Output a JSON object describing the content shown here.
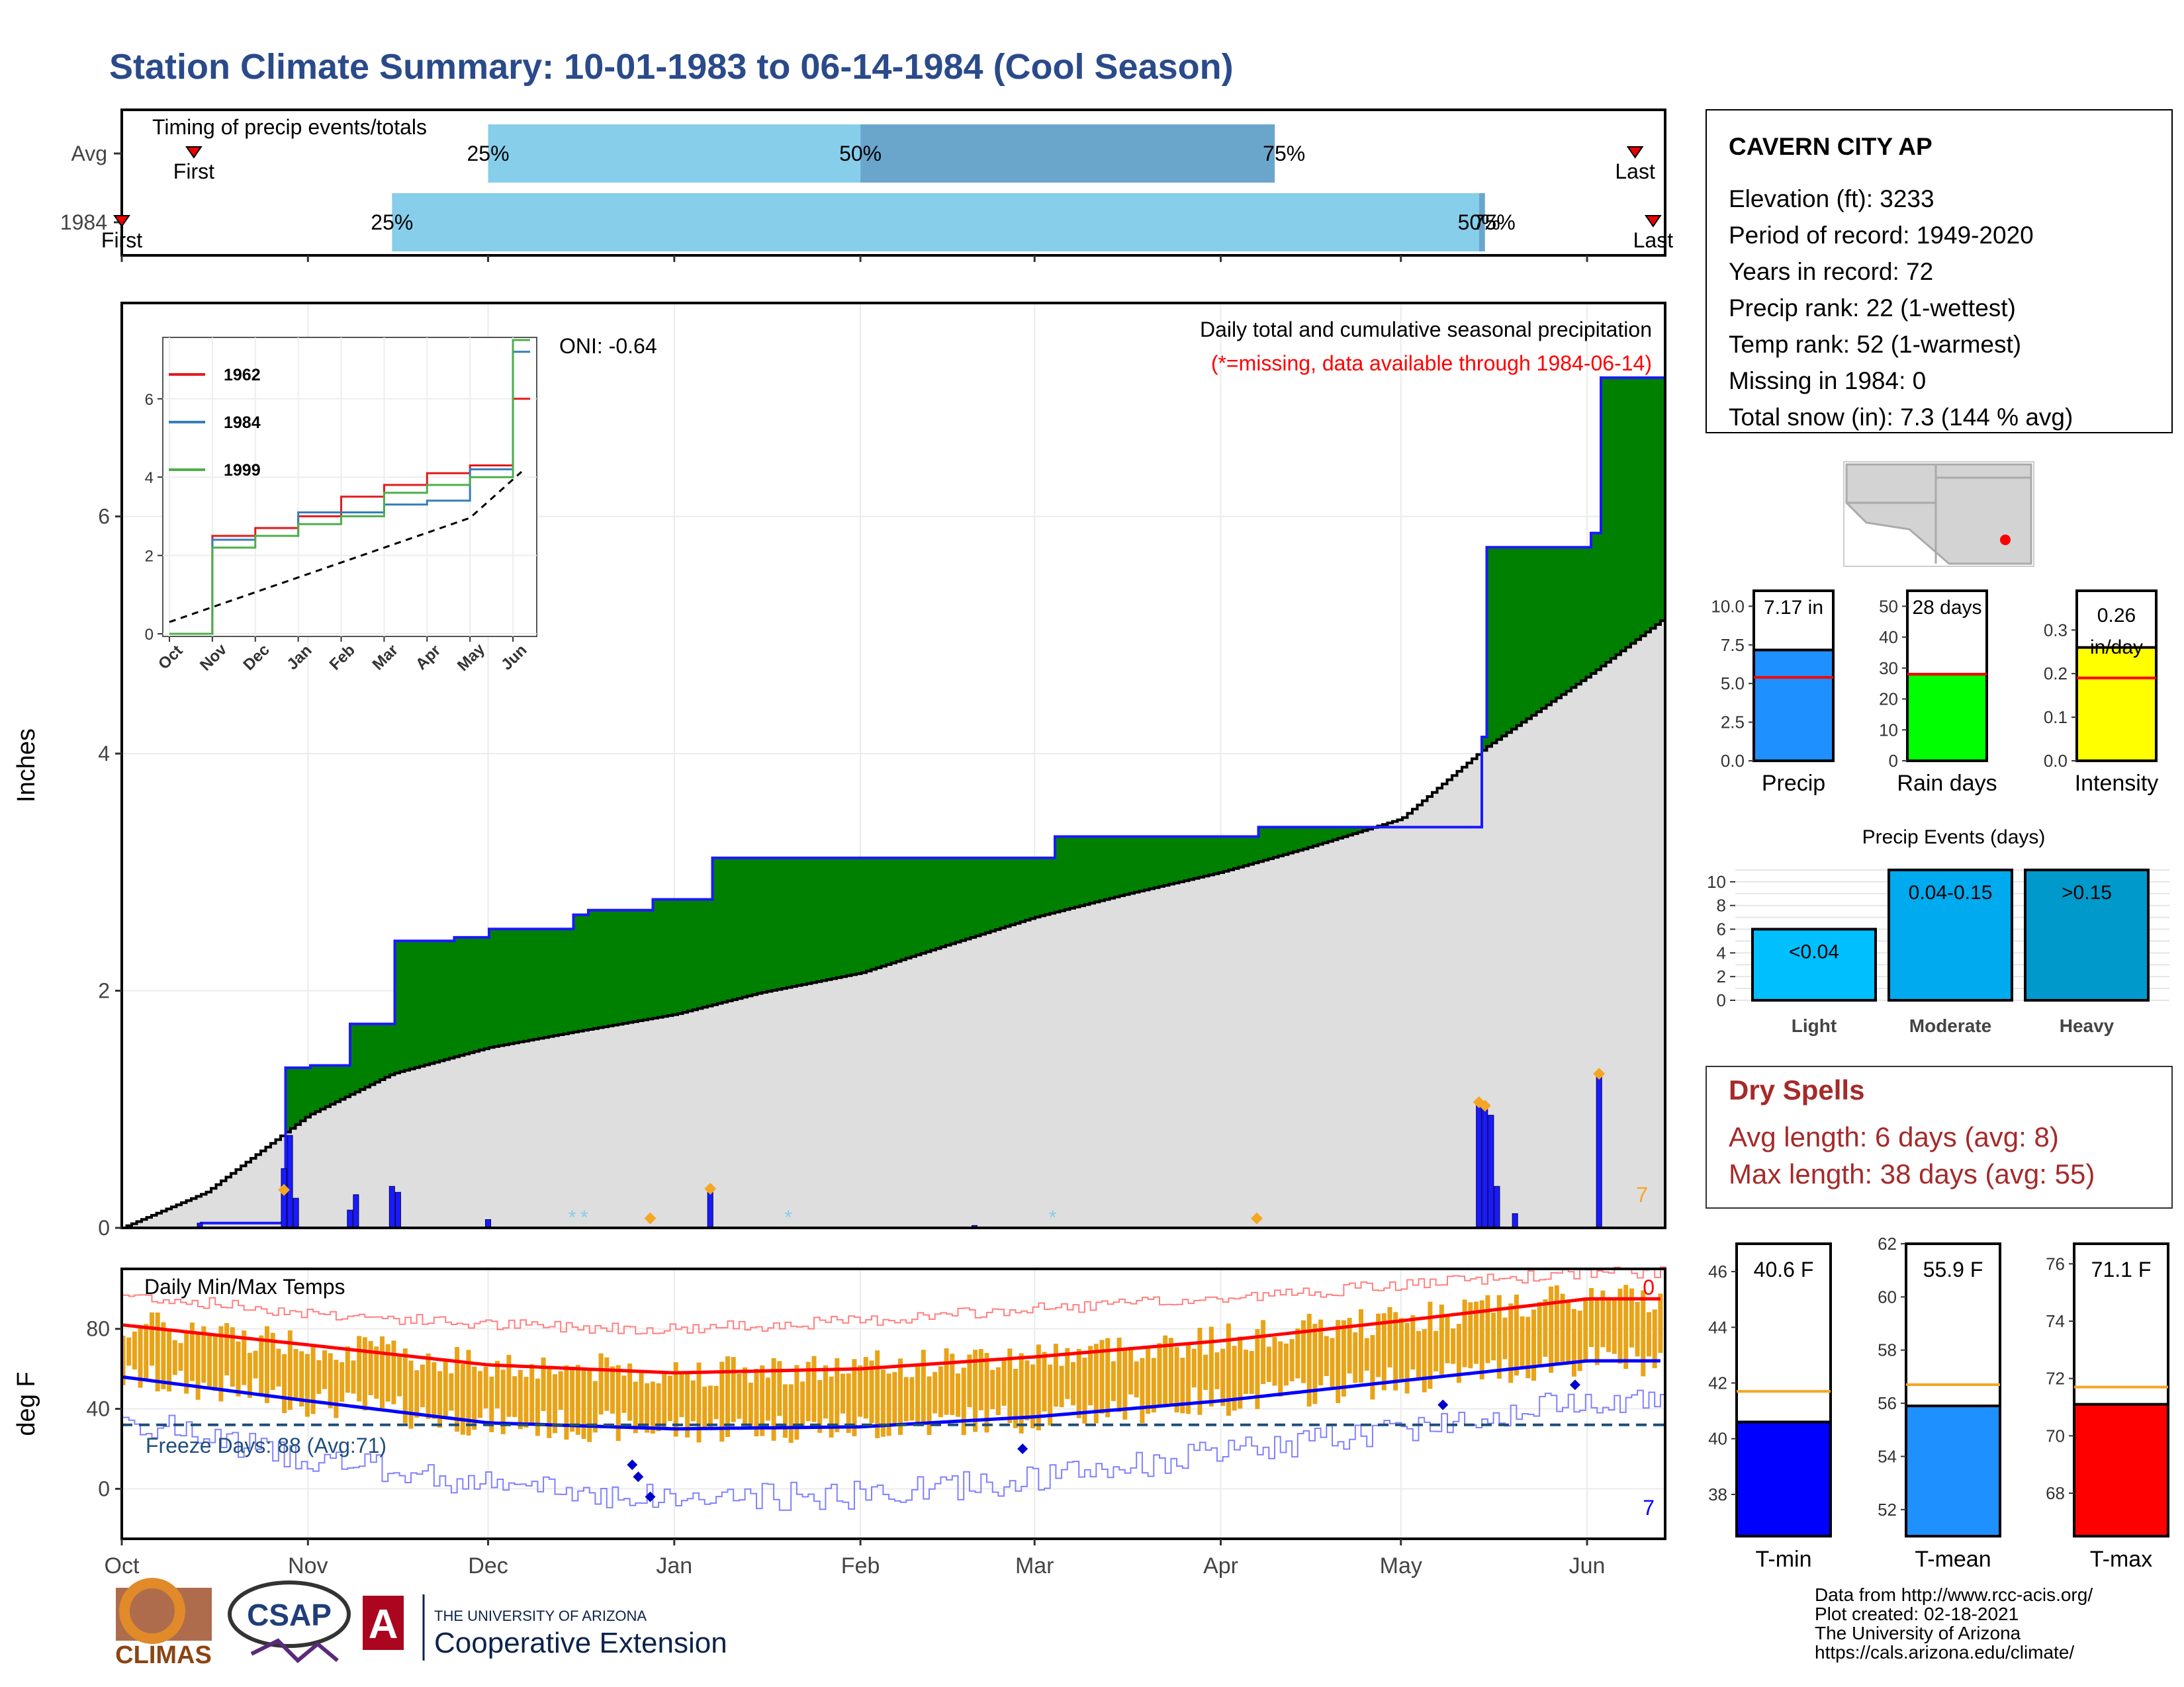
{
  "title": "Station Climate Summary: 10-01-1983 to 06-14-1984 (Cool Season)",
  "colors": {
    "title": "#2a4a8a",
    "q_light": "#87ceeb",
    "q_dark": "#6aa6cc",
    "green": "#008000",
    "brown": "#8b5a00",
    "grey_fill": "#dedede",
    "bar_blue": "#1a1aff",
    "orange": "#f5a623",
    "tmax_red": "#ff0000",
    "tmin_blue": "#0000ff",
    "dry_red": "#a52a2a"
  },
  "month_labels": [
    "Oct",
    "Nov",
    "Dec",
    "Jan",
    "Feb",
    "Mar",
    "Apr",
    "May",
    "Jun"
  ],
  "timing": {
    "title": "Timing of precip events/totals",
    "rows": [
      {
        "label": "Avg",
        "first_label": "First",
        "last_label": "Last",
        "q25": "25%",
        "q50": "50%",
        "q75": "75%"
      },
      {
        "label": "1984",
        "first_label": "First",
        "last_label": "Last",
        "q25": "25%",
        "q50": "50%",
        "q75": "75%"
      }
    ]
  },
  "precip": {
    "ylabel": "Inches",
    "title_line1": "Daily total and cumulative seasonal precipitation",
    "title_line2": "(*=missing, data available through 1984-06-14)",
    "oni": "ONI: -0.64",
    "corner_count": "7",
    "yticks": [
      "0",
      "2",
      "4",
      "6"
    ]
  },
  "inset": {
    "legend": [
      {
        "name": "1962",
        "color": "#e41a1c"
      },
      {
        "name": "1984",
        "color": "#377eb8"
      },
      {
        "name": "1999",
        "color": "#4daf4a"
      }
    ],
    "yticks": [
      "0",
      "2",
      "4",
      "6"
    ],
    "xticks": [
      "Oct",
      "Nov",
      "Dec",
      "Jan",
      "Feb",
      "Mar",
      "Apr",
      "May",
      "Jun"
    ]
  },
  "temps": {
    "title": "Daily Min/Max Temps",
    "ylabel": "deg F",
    "freeze": "Freeze Days: 88 (Avg:71)",
    "corner_top": "0",
    "corner_bottom": "7",
    "yticks": [
      "0",
      "40",
      "80"
    ]
  },
  "station": {
    "name": "CAVERN CITY AP",
    "lines": [
      "Elevation (ft): 3233",
      "Period of record: 1949-2020",
      "Years in record: 72",
      "Precip rank: 22 (1-wettest)",
      "Temp rank: 52 (1-warmest)",
      "Missing in 1984: 0",
      "Total snow (in): 7.3 (144 % avg)"
    ]
  },
  "summary_bars": [
    {
      "label": "Precip",
      "value_text": "7.17 in",
      "value": 7.17,
      "avg": 5.4,
      "ymax": 11,
      "ticks": [
        "0.0",
        "2.5",
        "5.0",
        "7.5",
        "10.0"
      ],
      "tickvals": [
        0,
        2.5,
        5,
        7.5,
        10
      ],
      "color": "#1e90ff"
    },
    {
      "label": "Rain days",
      "value_text": "28 days",
      "value": 28,
      "avg": 28,
      "ymax": 55,
      "ticks": [
        "0",
        "10",
        "20",
        "30",
        "40",
        "50"
      ],
      "tickvals": [
        0,
        10,
        20,
        30,
        40,
        50
      ],
      "color": "#00ff00"
    },
    {
      "label": "Intensity",
      "value_text": "0.26 in/day",
      "value": 0.26,
      "avg": 0.19,
      "ymax": 0.39,
      "ticks": [
        "0.0",
        "0.1",
        "0.2",
        "0.3"
      ],
      "tickvals": [
        0,
        0.1,
        0.2,
        0.3
      ],
      "color": "#ffff00"
    }
  ],
  "events": {
    "title": "Precip Events (days)",
    "categories": [
      "Light",
      "Moderate",
      "Heavy"
    ],
    "labels": [
      "<0.04",
      "0.04-0.15",
      ">0.15"
    ],
    "values": [
      6,
      11,
      11
    ],
    "yticks": [
      "0",
      "2",
      "4",
      "6",
      "8",
      "10"
    ]
  },
  "dry_spells": {
    "title": "Dry Spells",
    "avg": "Avg length: 6 days (avg: 8)",
    "max": "Max length: 38 days (avg: 55)"
  },
  "temp_bars": [
    {
      "label": "T-min",
      "value_text": "40.6 F",
      "value": 40.6,
      "avg": 41.7,
      "ymin": 36.5,
      "ymax": 47,
      "ticks": [
        "38",
        "40",
        "42",
        "44",
        "46"
      ],
      "tickvals": [
        38,
        40,
        42,
        44,
        46
      ],
      "color": "#0000ff"
    },
    {
      "label": "T-mean",
      "value_text": "55.9 F",
      "value": 55.9,
      "avg": 56.7,
      "ymin": 51,
      "ymax": 62,
      "ticks": [
        "52",
        "54",
        "56",
        "58",
        "60",
        "62"
      ],
      "tickvals": [
        52,
        54,
        56,
        58,
        60,
        62
      ],
      "color": "#1e90ff"
    },
    {
      "label": "T-max",
      "value_text": "71.1 F",
      "value": 71.1,
      "avg": 71.7,
      "ymin": 66.5,
      "ymax": 76.7,
      "ticks": [
        "68",
        "70",
        "72",
        "74",
        "76"
      ],
      "tickvals": [
        68,
        70,
        72,
        74,
        76
      ],
      "color": "#ff0000"
    }
  ],
  "credits": [
    "Data from http://www.rcc-acis.org/",
    "Plot created: 02-18-2021",
    "The University of Arizona",
    "https://cals.arizona.edu/climate/"
  ],
  "logos": {
    "climas": "CLIMAS",
    "csap": "CSAP",
    "ua_small": "THE UNIVERSITY OF ARIZONA",
    "ua_big": "Cooperative Extension"
  },
  "chart_data": [
    {
      "type": "area",
      "title": "Daily total and cumulative seasonal precipitation",
      "ylabel": "Inches",
      "ylim": [
        0,
        7.8
      ],
      "x_range": [
        "1983-10-01",
        "1984-06-14"
      ],
      "cumulative_1984": {
        "x": [
          "1983-10-01",
          "1983-10-14",
          "1983-10-28",
          "1983-11-01",
          "1983-11-08",
          "1983-11-15",
          "1983-11-25",
          "1983-12-01",
          "1983-12-15",
          "1983-12-17",
          "1983-12-28",
          "1984-01-07",
          "1984-02-01",
          "1984-03-01",
          "1984-03-04",
          "1984-04-01",
          "1984-04-07",
          "1984-05-01",
          "1984-05-14",
          "1984-05-15",
          "1984-05-20",
          "1984-06-01",
          "1984-06-03",
          "1984-06-14"
        ],
        "y": [
          0,
          0.04,
          1.35,
          1.37,
          1.72,
          2.42,
          2.45,
          2.52,
          2.64,
          2.68,
          2.77,
          3.12,
          3.12,
          3.12,
          3.3,
          3.3,
          3.38,
          3.38,
          4.14,
          5.74,
          5.74,
          5.86,
          7.17,
          7.17
        ]
      },
      "cumulative_average": {
        "x": [
          "1983-10-01",
          "1983-10-15",
          "1983-11-01",
          "1983-11-15",
          "1983-12-01",
          "1983-12-15",
          "1984-01-01",
          "1984-01-15",
          "1984-02-01",
          "1984-02-15",
          "1984-03-01",
          "1984-03-15",
          "1984-04-01",
          "1984-04-15",
          "1984-05-01",
          "1984-05-15",
          "1984-06-01",
          "1984-06-14"
        ],
        "y": [
          0,
          0.3,
          0.95,
          1.3,
          1.52,
          1.65,
          1.8,
          1.98,
          2.15,
          2.38,
          2.62,
          2.8,
          3.0,
          3.2,
          3.45,
          4.05,
          4.65,
          5.15
        ]
      },
      "daily_events": [
        {
          "date": "1983-10-14",
          "in": 0.04
        },
        {
          "date": "1983-10-28",
          "in": 0.5
        },
        {
          "date": "1983-10-29",
          "in": 0.78
        },
        {
          "date": "1983-10-30",
          "in": 0.25
        },
        {
          "date": "1983-11-08",
          "in": 0.15
        },
        {
          "date": "1983-11-09",
          "in": 0.28
        },
        {
          "date": "1983-11-15",
          "in": 0.35
        },
        {
          "date": "1983-11-16",
          "in": 0.3
        },
        {
          "date": "1983-12-01",
          "in": 0.07
        },
        {
          "date": "1984-01-07",
          "in": 0.3
        },
        {
          "date": "1984-02-20",
          "in": 0.02
        },
        {
          "date": "1984-05-14",
          "in": 1.05
        },
        {
          "date": "1984-05-15",
          "in": 1.0
        },
        {
          "date": "1984-05-16",
          "in": 0.95
        },
        {
          "date": "1984-05-17",
          "in": 0.35
        },
        {
          "date": "1984-05-20",
          "in": 0.12
        },
        {
          "date": "1984-06-03",
          "in": 1.3
        }
      ],
      "inset": {
        "type": "line",
        "series": [
          {
            "name": "1962",
            "x": [
              "Oct",
              "Nov",
              "Dec",
              "Jan",
              "Feb",
              "Mar",
              "Apr",
              "May",
              "Jun"
            ],
            "y": [
              0,
              2.5,
              2.7,
              3.0,
              3.5,
              3.8,
              4.1,
              4.3,
              6.0
            ]
          },
          {
            "name": "1984",
            "x": [
              "Oct",
              "Nov",
              "Dec",
              "Jan",
              "Feb",
              "Mar",
              "Apr",
              "May",
              "Jun"
            ],
            "y": [
              0,
              2.4,
              2.5,
              3.1,
              3.1,
              3.3,
              3.4,
              4.2,
              7.2
            ]
          },
          {
            "name": "1999",
            "x": [
              "Oct",
              "Nov",
              "Dec",
              "Jan",
              "Feb",
              "Mar",
              "Apr",
              "May",
              "Jun"
            ],
            "y": [
              0,
              2.2,
              2.5,
              2.8,
              3.0,
              3.6,
              3.8,
              4.0,
              7.5
            ]
          }
        ],
        "ylim": [
          0,
          7.5
        ]
      }
    },
    {
      "type": "line",
      "title": "Daily Min/Max Temps",
      "ylabel": "deg F",
      "ylim": [
        -25,
        110
      ],
      "series": [
        {
          "name": "Tmax average",
          "x": [
            "Oct",
            "Nov",
            "Dec",
            "Jan",
            "Feb",
            "Mar",
            "Apr",
            "May",
            "Jun"
          ],
          "y": [
            82,
            72,
            62,
            58,
            60,
            66,
            74,
            84,
            95
          ]
        },
        {
          "name": "Tmin average",
          "x": [
            "Oct",
            "Nov",
            "Dec",
            "Jan",
            "Feb",
            "Mar",
            "Apr",
            "May",
            "Jun"
          ],
          "y": [
            56,
            44,
            33,
            30,
            31,
            36,
            44,
            54,
            64
          ]
        },
        {
          "name": "Record high",
          "x": [
            "Oct",
            "Nov",
            "Dec",
            "Jan",
            "Feb",
            "Mar",
            "Apr",
            "May",
            "Jun"
          ],
          "y": [
            97,
            88,
            82,
            80,
            84,
            90,
            95,
            102,
            108
          ]
        },
        {
          "name": "Record low",
          "x": [
            "Oct",
            "Nov",
            "Dec",
            "Jan",
            "Feb",
            "Mar",
            "Apr",
            "May",
            "Jun"
          ],
          "y": [
            35,
            15,
            2,
            -5,
            -3,
            5,
            18,
            30,
            45
          ]
        }
      ],
      "freeze_line": 32
    },
    {
      "type": "bar",
      "categories": [
        "Light",
        "Moderate",
        "Heavy"
      ],
      "values": [
        6,
        11,
        11
      ],
      "title": "Precip Events (days)"
    }
  ]
}
